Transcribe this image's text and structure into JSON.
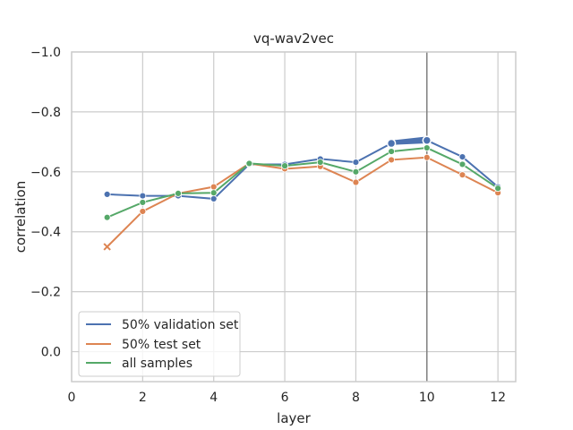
{
  "chart_data": {
    "type": "line",
    "title": "vq-wav2vec",
    "xlabel": "layer",
    "ylabel": "correlation",
    "xlim": [
      0,
      12.5
    ],
    "ylim": [
      0.1,
      -1.0
    ],
    "y_axis_inverted": true,
    "xticks": [
      0,
      2,
      4,
      6,
      8,
      10,
      12
    ],
    "xtick_labels": [
      "0",
      "2",
      "4",
      "6",
      "8",
      "10",
      "12"
    ],
    "yticks": [
      0.0,
      -0.2,
      -0.4,
      -0.6,
      -0.8,
      -1.0
    ],
    "ytick_labels": [
      "0.0",
      "−0.2",
      "−0.4",
      "−0.6",
      "−0.8",
      "−1.0"
    ],
    "grid": true,
    "legend_position": "lower-left",
    "vertical_line_x": 10,
    "x": [
      1,
      2,
      3,
      4,
      5,
      6,
      7,
      8,
      9,
      10,
      11,
      12
    ],
    "series": [
      {
        "name": "50% validation set",
        "color": "#4c72b0",
        "values": [
          -0.525,
          -0.52,
          -0.52,
          -0.51,
          -0.625,
          -0.625,
          -0.643,
          -0.632,
          -0.695,
          -0.705,
          -0.65,
          -0.55
        ],
        "band_upper": [
          null,
          null,
          null,
          null,
          null,
          null,
          null,
          null,
          -0.705,
          -0.718,
          null,
          null
        ],
        "band_lower": [
          null,
          null,
          null,
          null,
          null,
          null,
          null,
          null,
          -0.69,
          -0.695,
          null,
          null
        ],
        "highlighted_x": [
          9,
          10
        ]
      },
      {
        "name": "50% test set",
        "color": "#dd8452",
        "values": [
          -0.35,
          -0.468,
          -0.528,
          -0.55,
          -0.628,
          -0.61,
          -0.618,
          -0.565,
          -0.64,
          -0.648,
          -0.59,
          -0.53
        ],
        "x_marker_at": [
          1
        ]
      },
      {
        "name": "all samples",
        "color": "#55a868",
        "values": [
          -0.448,
          -0.498,
          -0.528,
          -0.53,
          -0.628,
          -0.62,
          -0.632,
          -0.6,
          -0.668,
          -0.68,
          -0.625,
          -0.545
        ]
      }
    ]
  }
}
